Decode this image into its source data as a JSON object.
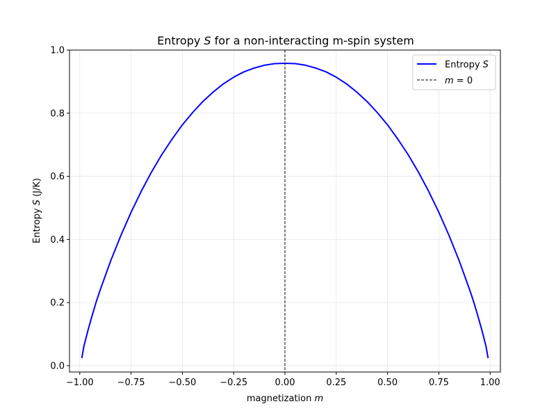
{
  "chart_data": {
    "type": "line",
    "title_parts": [
      "Entropy ",
      "S",
      " for a non-interacting m-spin system"
    ],
    "xlabel_parts": [
      "magnetization ",
      "m"
    ],
    "ylabel_parts": [
      "Entropy ",
      "S",
      " (J/K)"
    ],
    "xlim": [
      -1.05,
      1.05
    ],
    "ylim": [
      -0.02,
      1.0
    ],
    "x_ticks": [
      -1.0,
      -0.75,
      -0.5,
      -0.25,
      0.0,
      0.25,
      0.5,
      0.75,
      1.0
    ],
    "x_tick_labels": [
      "−1.00",
      "−0.75",
      "−0.50",
      "−0.25",
      "0.00",
      "0.25",
      "0.50",
      "0.75",
      "1.00"
    ],
    "y_ticks": [
      0.0,
      0.2,
      0.4,
      0.6,
      0.8,
      1.0
    ],
    "y_tick_labels": [
      "0.0",
      "0.2",
      "0.4",
      "0.6",
      "0.8",
      "1.0"
    ],
    "grid": true,
    "legend_position": "top-right",
    "series": [
      {
        "name_parts": [
          "Entropy ",
          "S"
        ],
        "color": "#0000ff",
        "style": "solid",
        "x": [
          -0.99,
          -0.98,
          -0.96,
          -0.94,
          -0.92,
          -0.9,
          -0.85,
          -0.8,
          -0.75,
          -0.7,
          -0.65,
          -0.6,
          -0.55,
          -0.5,
          -0.45,
          -0.4,
          -0.35,
          -0.3,
          -0.25,
          -0.2,
          -0.15,
          -0.1,
          -0.05,
          0.0,
          0.05,
          0.1,
          0.15,
          0.2,
          0.25,
          0.3,
          0.35,
          0.4,
          0.45,
          0.5,
          0.55,
          0.6,
          0.65,
          0.7,
          0.75,
          0.8,
          0.85,
          0.9,
          0.92,
          0.94,
          0.96,
          0.98,
          0.99
        ],
        "y": [
          0.024,
          0.061,
          0.112,
          0.158,
          0.202,
          0.241,
          0.331,
          0.412,
          0.486,
          0.553,
          0.614,
          0.669,
          0.718,
          0.763,
          0.802,
          0.837,
          0.867,
          0.893,
          0.914,
          0.931,
          0.943,
          0.952,
          0.957,
          0.958,
          0.957,
          0.952,
          0.943,
          0.931,
          0.914,
          0.893,
          0.867,
          0.837,
          0.802,
          0.763,
          0.718,
          0.669,
          0.614,
          0.553,
          0.486,
          0.412,
          0.331,
          0.241,
          0.202,
          0.158,
          0.112,
          0.061,
          0.024
        ]
      },
      {
        "name_parts": [
          "m",
          " = 0"
        ],
        "color": "#000000",
        "style": "dashed",
        "vertical_x": 0.0
      }
    ]
  }
}
